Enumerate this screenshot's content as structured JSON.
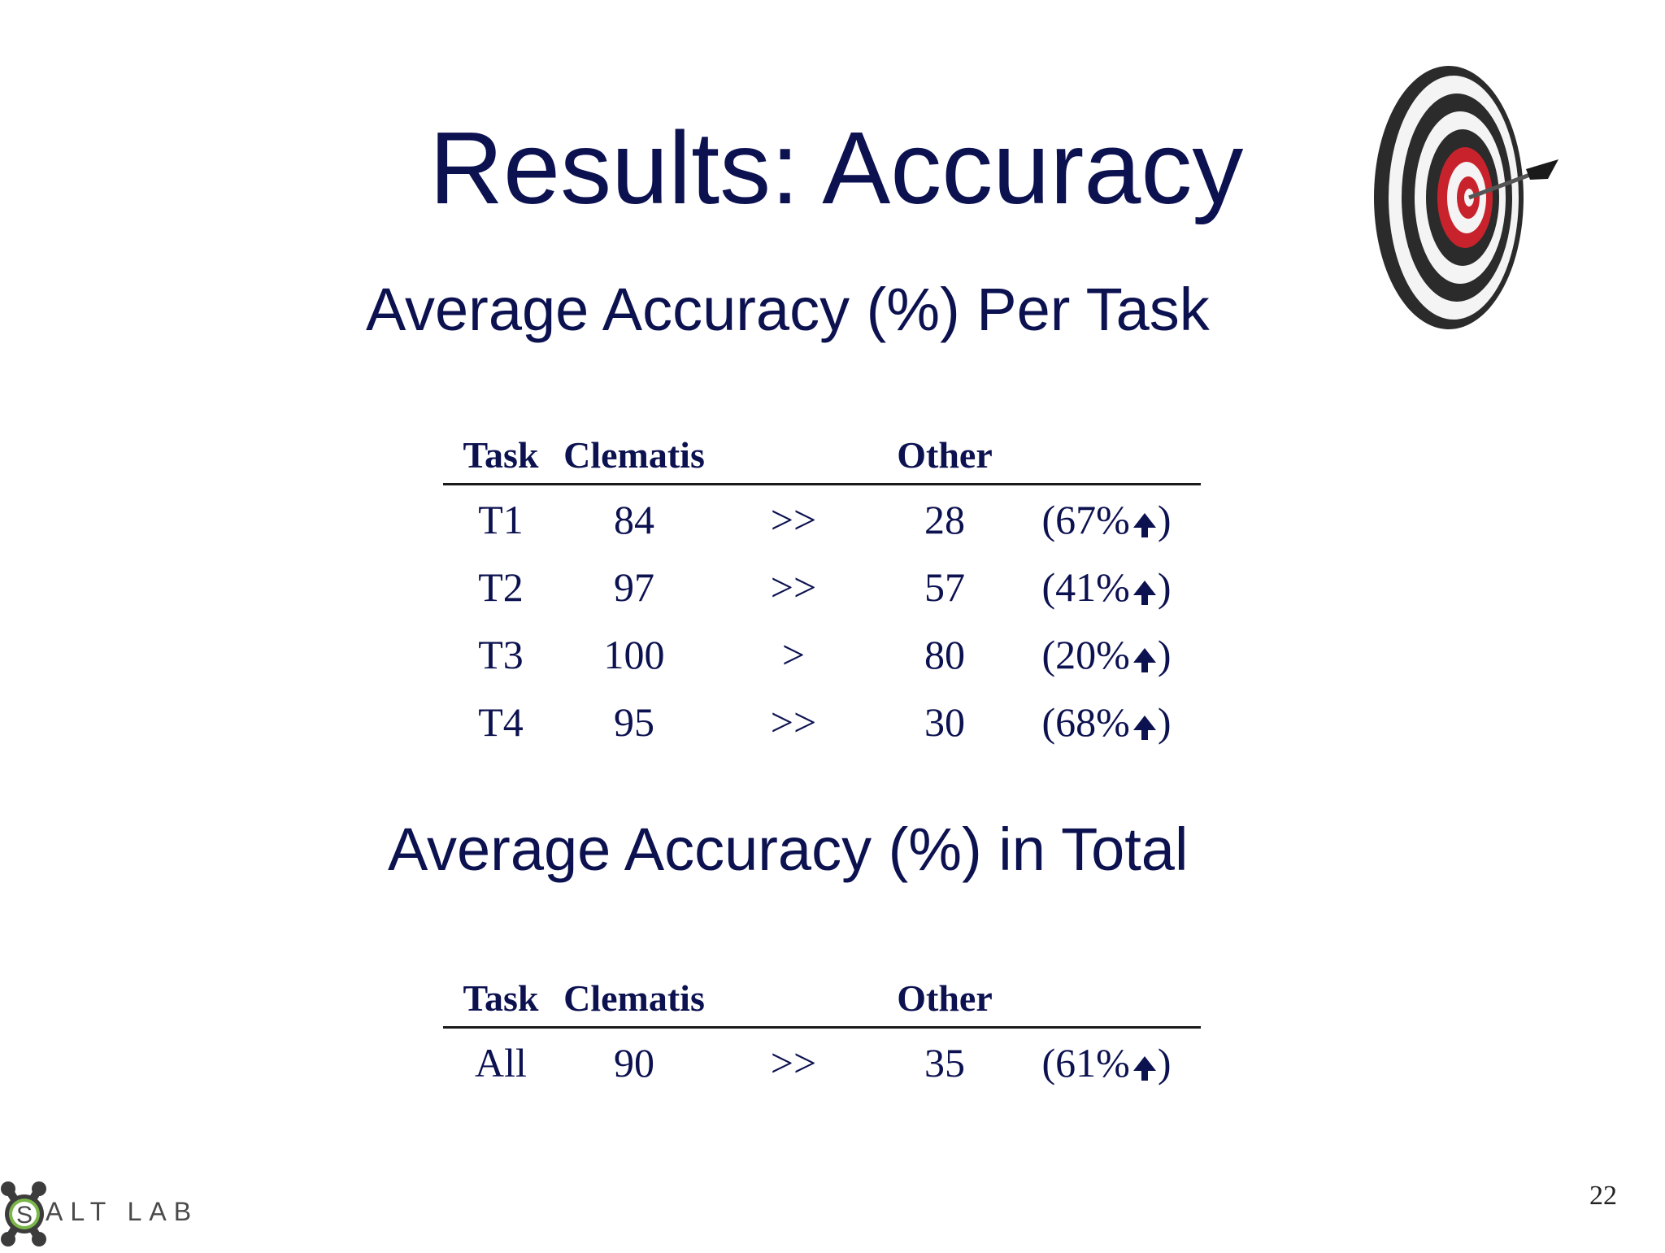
{
  "slide": {
    "title": "Results: Accuracy",
    "page_number": "22"
  },
  "per_task": {
    "heading": "Average Accuracy (%) Per Task",
    "columns": {
      "task": "Task",
      "clematis": "Clematis",
      "other": "Other"
    },
    "rows": [
      {
        "task": "T1",
        "clematis": "84",
        "comparison": ">>",
        "other": "28",
        "improvement": "(67%",
        "close": ")"
      },
      {
        "task": "T2",
        "clematis": "97",
        "comparison": ">>",
        "other": "57",
        "improvement": "(41%",
        "close": ")"
      },
      {
        "task": "T3",
        "clematis": "100",
        "comparison": ">",
        "other": "80",
        "improvement": "(20%",
        "close": ")"
      },
      {
        "task": "T4",
        "clematis": "95",
        "comparison": ">>",
        "other": "30",
        "improvement": "(68%",
        "close": ")"
      }
    ]
  },
  "total": {
    "heading": "Average Accuracy (%) in Total",
    "columns": {
      "task": "Task",
      "clematis": "Clematis",
      "other": "Other"
    },
    "rows": [
      {
        "task": "All",
        "clematis": "90",
        "comparison": ">>",
        "other": "35",
        "improvement": "(61%",
        "close": ")"
      }
    ]
  },
  "logo": {
    "text": "ALT LAB",
    "colors": {
      "ring": "#3c3c3c",
      "inner": "#7ab648"
    }
  },
  "icons": {
    "target": "target-dart-icon",
    "increase_arrow": "arrow-up-icon"
  },
  "colors": {
    "text": "#0c1150",
    "target_red": "#c8232c",
    "target_dark": "#2b2b2b"
  }
}
